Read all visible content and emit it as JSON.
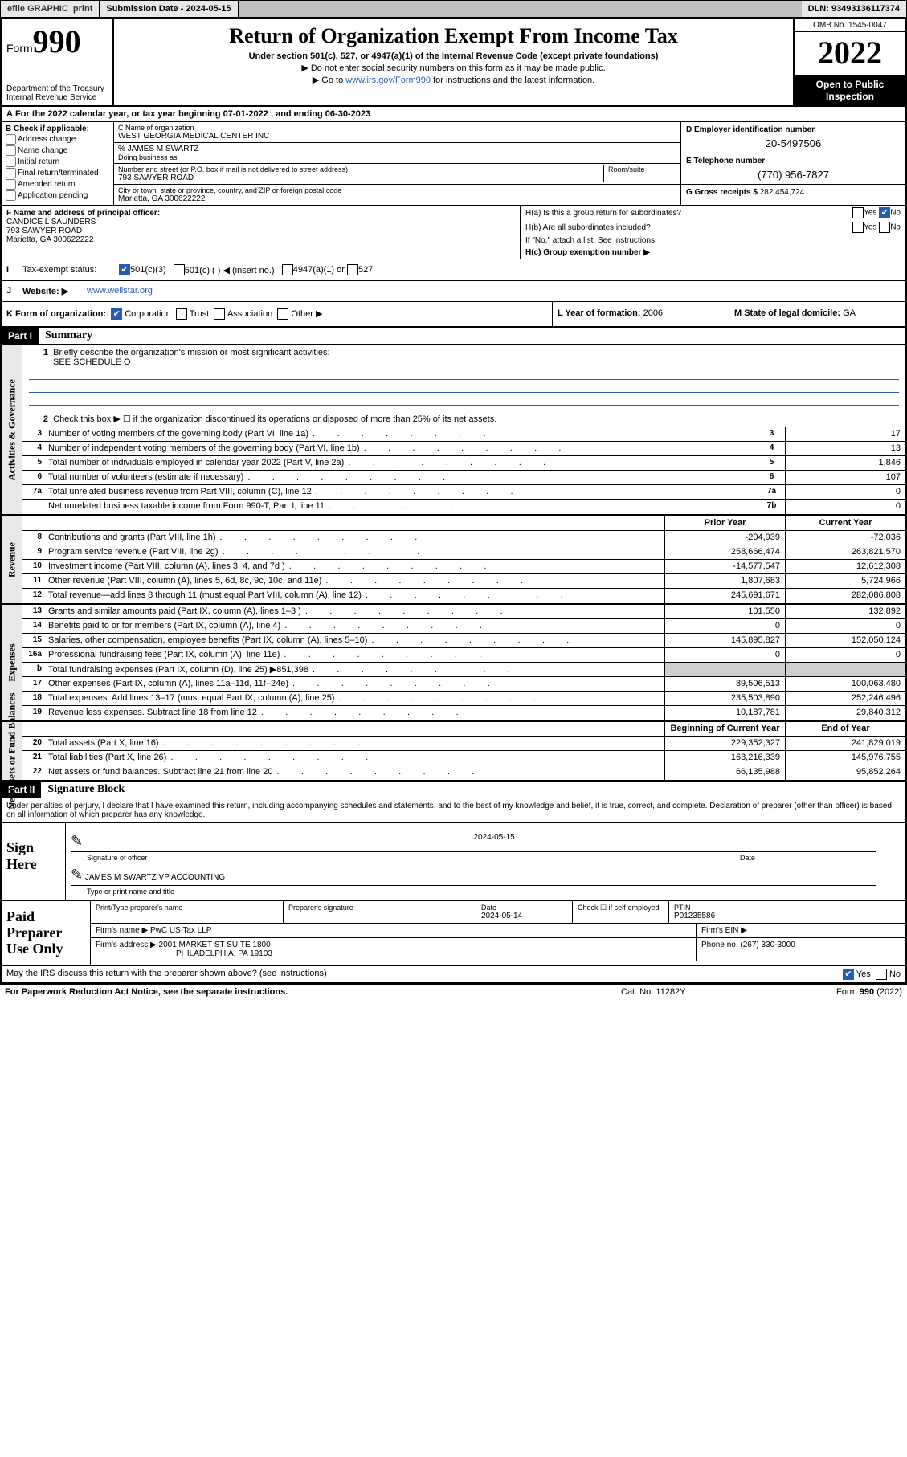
{
  "topbar": {
    "efile": "efile GRAPHIC",
    "print": "print",
    "submission": "Submission Date - 2024-05-15",
    "dln": "DLN: 93493136117374"
  },
  "header": {
    "form_label": "Form",
    "form_num": "990",
    "dept": "Department of the Treasury",
    "irs": "Internal Revenue Service",
    "title": "Return of Organization Exempt From Income Tax",
    "sub1": "Under section 501(c), 527, or 4947(a)(1) of the Internal Revenue Code (except private foundations)",
    "sub2": "▶ Do not enter social security numbers on this form as it may be made public.",
    "sub3_pre": "▶ Go to ",
    "sub3_link": "www.irs.gov/Form990",
    "sub3_post": " for instructions and the latest information.",
    "omb": "OMB No. 1545-0047",
    "year": "2022",
    "inspect": "Open to Public Inspection"
  },
  "row_a": {
    "label": "A",
    "text_pre": "For the 2022 calendar year, or tax year beginning ",
    "begin": "07-01-2022",
    "mid": " , and ending ",
    "end": "06-30-2023"
  },
  "col_b": {
    "hdr": "B Check if applicable:",
    "items": [
      "Address change",
      "Name change",
      "Initial return",
      "Final return/terminated",
      "Amended return",
      "Application pending"
    ]
  },
  "col_c": {
    "name_lab": "C Name of organization",
    "name": "WEST GEORGIA MEDICAL CENTER INC",
    "care_lab": "% JAMES M SWARTZ",
    "dba_lab": "Doing business as",
    "addr_lab": "Number and street (or P.O. box if mail is not delivered to street address)",
    "room_lab": "Room/suite",
    "addr": "793 SAWYER ROAD",
    "city_lab": "City or town, state or province, country, and ZIP or foreign postal code",
    "city": "Marietta, GA  300622222"
  },
  "col_d": {
    "lab": "D Employer identification number",
    "val": "20-5497506"
  },
  "col_e": {
    "lab": "E Telephone number",
    "val": "(770) 956-7827"
  },
  "col_g": {
    "lab": "G Gross receipts $",
    "val": "282,454,724"
  },
  "row_f": {
    "lab": "F Name and address of principal officer:",
    "name": "CANDICE L SAUNDERS",
    "addr1": "793 SAWYER ROAD",
    "addr2": "Marietta, GA  300622222"
  },
  "h": {
    "a_lab": "H(a)  Is this a group return for subordinates?",
    "b_lab": "H(b)  Are all subordinates included?",
    "b_note": "If \"No,\" attach a list. See instructions.",
    "c_lab": "H(c)  Group exemption number ▶",
    "yes": "Yes",
    "no": "No"
  },
  "row_i": {
    "lab": "I",
    "title": "Tax-exempt status:",
    "opts": [
      "501(c)(3)",
      "501(c) (  ) ◀ (insert no.)",
      "4947(a)(1) or",
      "527"
    ]
  },
  "row_j": {
    "lab": "J",
    "title": "Website: ▶",
    "val": "www.wellstar.org"
  },
  "row_k": {
    "k_lab": "K Form of organization:",
    "k_opts": [
      "Corporation",
      "Trust",
      "Association",
      "Other ▶"
    ],
    "l_lab": "L Year of formation:",
    "l_val": "2006",
    "m_lab": "M State of legal domicile:",
    "m_val": "GA"
  },
  "part1": {
    "hdr": "Part I",
    "title": "Summary"
  },
  "summary": {
    "q1": "Briefly describe the organization's mission or most significant activities:",
    "q1_val": "SEE SCHEDULE O",
    "q2": "Check this box ▶ ☐  if the organization discontinued its operations or disposed of more than 25% of its net assets.",
    "lines_ag": [
      {
        "n": "3",
        "d": "Number of voting members of the governing body (Part VI, line 1a)",
        "c": "3",
        "v": "17"
      },
      {
        "n": "4",
        "d": "Number of independent voting members of the governing body (Part VI, line 1b)",
        "c": "4",
        "v": "13"
      },
      {
        "n": "5",
        "d": "Total number of individuals employed in calendar year 2022 (Part V, line 2a)",
        "c": "5",
        "v": "1,846"
      },
      {
        "n": "6",
        "d": "Total number of volunteers (estimate if necessary)",
        "c": "6",
        "v": "107"
      },
      {
        "n": "7a",
        "d": "Total unrelated business revenue from Part VIII, column (C), line 12",
        "c": "7a",
        "v": "0"
      },
      {
        "n": "",
        "d": "Net unrelated business taxable income from Form 990-T, Part I, line 11",
        "c": "7b",
        "v": "0"
      }
    ],
    "col_hdr_prior": "Prior Year",
    "col_hdr_curr": "Current Year",
    "rev": [
      {
        "n": "8",
        "d": "Contributions and grants (Part VIII, line 1h)",
        "p": "-204,939",
        "c": "-72,036"
      },
      {
        "n": "9",
        "d": "Program service revenue (Part VIII, line 2g)",
        "p": "258,666,474",
        "c": "263,821,570"
      },
      {
        "n": "10",
        "d": "Investment income (Part VIII, column (A), lines 3, 4, and 7d )",
        "p": "-14,577,547",
        "c": "12,612,308"
      },
      {
        "n": "11",
        "d": "Other revenue (Part VIII, column (A), lines 5, 6d, 8c, 9c, 10c, and 11e)",
        "p": "1,807,683",
        "c": "5,724,966"
      },
      {
        "n": "12",
        "d": "Total revenue—add lines 8 through 11 (must equal Part VIII, column (A), line 12)",
        "p": "245,691,671",
        "c": "282,086,808"
      }
    ],
    "exp": [
      {
        "n": "13",
        "d": "Grants and similar amounts paid (Part IX, column (A), lines 1–3 )",
        "p": "101,550",
        "c": "132,892"
      },
      {
        "n": "14",
        "d": "Benefits paid to or for members (Part IX, column (A), line 4)",
        "p": "0",
        "c": "0"
      },
      {
        "n": "15",
        "d": "Salaries, other compensation, employee benefits (Part IX, column (A), lines 5–10)",
        "p": "145,895,827",
        "c": "152,050,124"
      },
      {
        "n": "16a",
        "d": "Professional fundraising fees (Part IX, column (A), line 11e)",
        "p": "0",
        "c": "0"
      },
      {
        "n": "b",
        "d": "Total fundraising expenses (Part IX, column (D), line 25) ▶851,398",
        "p": "grey",
        "c": "grey"
      },
      {
        "n": "17",
        "d": "Other expenses (Part IX, column (A), lines 11a–11d, 11f–24e)",
        "p": "89,506,513",
        "c": "100,063,480"
      },
      {
        "n": "18",
        "d": "Total expenses. Add lines 13–17 (must equal Part IX, column (A), line 25)",
        "p": "235,503,890",
        "c": "252,246,496"
      },
      {
        "n": "19",
        "d": "Revenue less expenses. Subtract line 18 from line 12",
        "p": "10,187,781",
        "c": "29,840,312"
      }
    ],
    "na_hdr_begin": "Beginning of Current Year",
    "na_hdr_end": "End of Year",
    "na": [
      {
        "n": "20",
        "d": "Total assets (Part X, line 16)",
        "p": "229,352,327",
        "c": "241,829,019"
      },
      {
        "n": "21",
        "d": "Total liabilities (Part X, line 26)",
        "p": "163,216,339",
        "c": "145,976,755"
      },
      {
        "n": "22",
        "d": "Net assets or fund balances. Subtract line 21 from line 20",
        "p": "66,135,988",
        "c": "95,852,264"
      }
    ]
  },
  "side_labels": {
    "ag": "Activities & Governance",
    "rev": "Revenue",
    "exp": "Expenses",
    "na": "Net Assets or Fund Balances"
  },
  "part2": {
    "hdr": "Part II",
    "title": "Signature Block",
    "decl": "Under penalties of perjury, I declare that I have examined this return, including accompanying schedules and statements, and to the best of my knowledge and belief, it is true, correct, and complete. Declaration of preparer (other than officer) is based on all information of which preparer has any knowledge."
  },
  "sign": {
    "left": "Sign Here",
    "sig_lab": "Signature of officer",
    "date_lab": "Date",
    "date_val": "2024-05-15",
    "name": "JAMES M SWARTZ  VP ACCOUNTING",
    "name_lab": "Type or print name and title"
  },
  "paid": {
    "left": "Paid Preparer Use Only",
    "r1": {
      "c1_lab": "Print/Type preparer's name",
      "c2_lab": "Preparer's signature",
      "c3_lab": "Date",
      "c3_val": "2024-05-14",
      "c4_lab": "Check ☐ if self-employed",
      "c5_lab": "PTIN",
      "c5_val": "P01235586"
    },
    "r2": {
      "lab": "Firm's name    ▶",
      "val": "PwC US Tax LLP",
      "ein_lab": "Firm's EIN ▶"
    },
    "r3": {
      "lab": "Firm's address ▶",
      "val1": "2001 MARKET ST SUITE 1800",
      "val2": "PHILADELPHIA, PA  19103",
      "ph_lab": "Phone no.",
      "ph_val": "(267) 330-3000"
    }
  },
  "discuss": {
    "q": "May the IRS discuss this return with the preparer shown above? (see instructions)",
    "yes": "Yes",
    "no": "No"
  },
  "footer": {
    "l": "For Paperwork Reduction Act Notice, see the separate instructions.",
    "m": "Cat. No. 11282Y",
    "r": "Form 990 (2022)"
  }
}
